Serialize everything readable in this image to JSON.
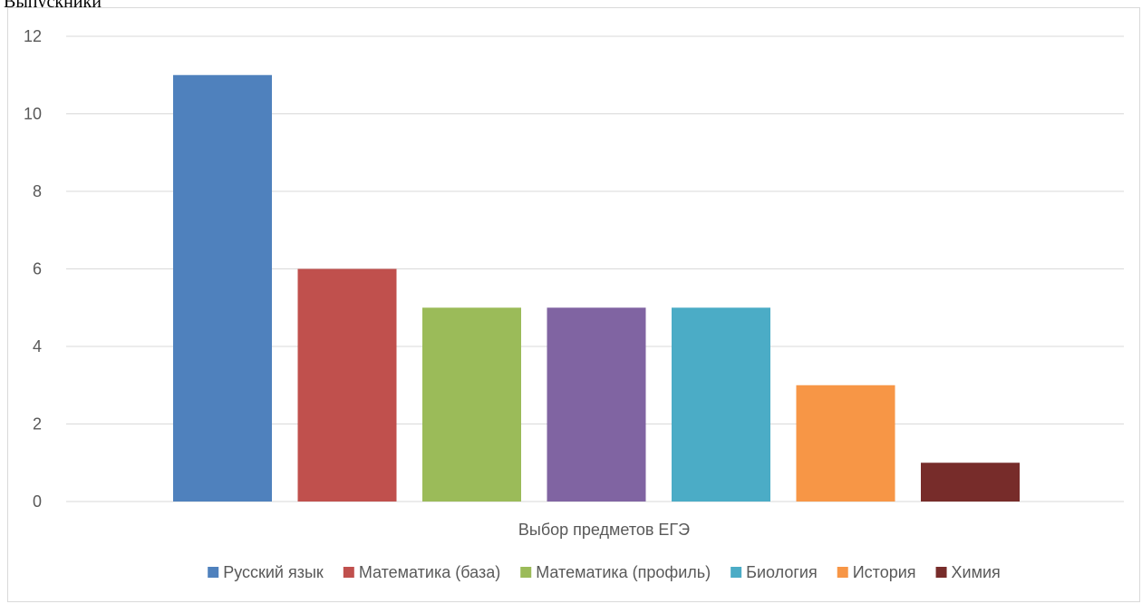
{
  "page": {
    "header_text": "Выпускники"
  },
  "chart_data": {
    "type": "bar",
    "xlabel": "Выбор предметов ЕГЭ",
    "ylabel": "",
    "ylim": [
      0,
      12
    ],
    "y_ticks": [
      0,
      2,
      4,
      6,
      8,
      10,
      12
    ],
    "grid": true,
    "legend_position": "bottom",
    "series": [
      {
        "name": "Русский язык",
        "value": 11,
        "color": "#4f81bd"
      },
      {
        "name": "Математика (база)",
        "value": 6,
        "color": "#c0504d"
      },
      {
        "name": "Математика (профиль)",
        "value": 5,
        "color": "#9bbb59"
      },
      {
        "name": "Математика (профиль)",
        "value": 5,
        "color": "#8064a2"
      },
      {
        "name": "Биология",
        "value": 5,
        "color": "#4bacc6"
      },
      {
        "name": "История",
        "value": 3,
        "color": "#f79646"
      },
      {
        "name": "Химия",
        "value": 1,
        "color": "#772c2a"
      }
    ],
    "legend": [
      {
        "label": "Русский язык",
        "color": "#4f81bd"
      },
      {
        "label": "Математика (база)",
        "color": "#c0504d"
      },
      {
        "label": "Математика (профиль)",
        "color": "#9bbb59"
      },
      {
        "label": "Биология",
        "color": "#4bacc6"
      },
      {
        "label": "История",
        "color": "#f79646"
      },
      {
        "label": "Химия",
        "color": "#772c2a"
      }
    ]
  }
}
